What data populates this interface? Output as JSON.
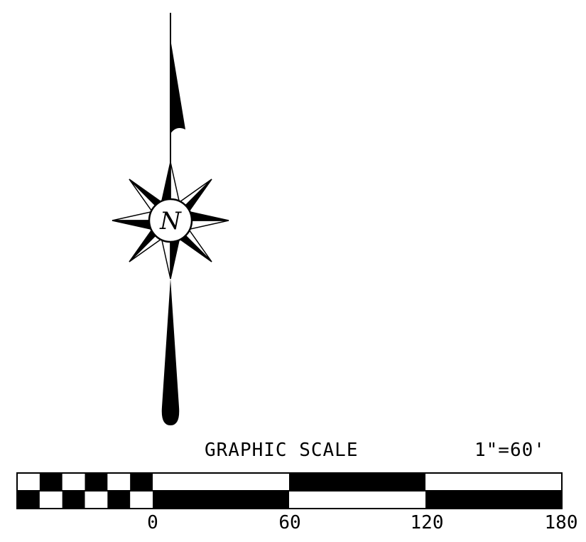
{
  "compass": {
    "north_letter": "N"
  },
  "scale": {
    "title": "GRAPHIC SCALE",
    "ratio": "1\"=60'",
    "ticks": [
      "0",
      "60",
      "120",
      "180"
    ]
  },
  "colors": {
    "ink": "#000000",
    "paper": "#ffffff"
  }
}
